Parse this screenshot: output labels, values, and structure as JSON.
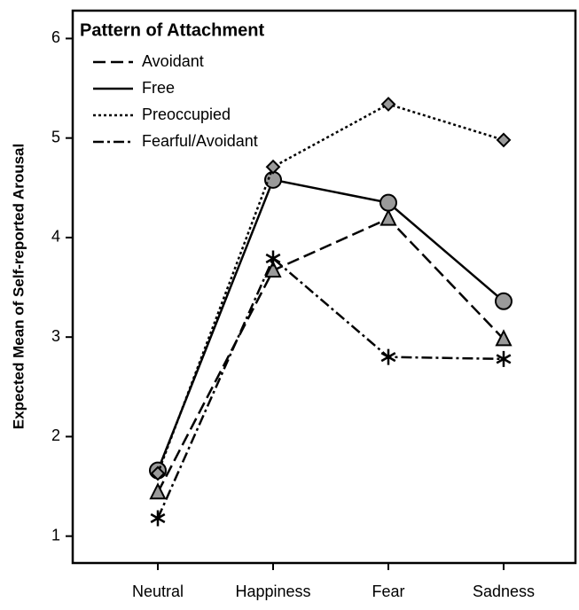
{
  "chart_data": {
    "type": "line",
    "ylabel": "Expected Mean of Self-reported Arousal",
    "legend_title": "Pattern of Attachment",
    "legend": "upper left",
    "categories": [
      "Neutral",
      "Happiness",
      "Fear",
      "Sadness"
    ],
    "ylim": [
      0.73,
      6.28
    ],
    "yticks": [
      1,
      2,
      3,
      4,
      5,
      6
    ],
    "series": [
      {
        "name": "Avoidant",
        "color": "#000000",
        "marker": "triangle",
        "dash": "14,6",
        "values": [
          1.44,
          3.67,
          4.19,
          2.98
        ]
      },
      {
        "name": "Free",
        "color": "#000000",
        "marker": "circle",
        "dash": "none",
        "values": [
          1.66,
          4.58,
          4.35,
          3.36
        ]
      },
      {
        "name": "Preoccupied",
        "color": "#000000",
        "marker": "diamond",
        "dash": "3,3",
        "values": [
          1.63,
          4.71,
          5.34,
          4.98
        ]
      },
      {
        "name": "Fearful/Avoidant",
        "color": "#000000",
        "marker": "star",
        "dash": "12,4,3,4",
        "values": [
          1.18,
          3.79,
          2.8,
          2.78
        ]
      }
    ]
  }
}
